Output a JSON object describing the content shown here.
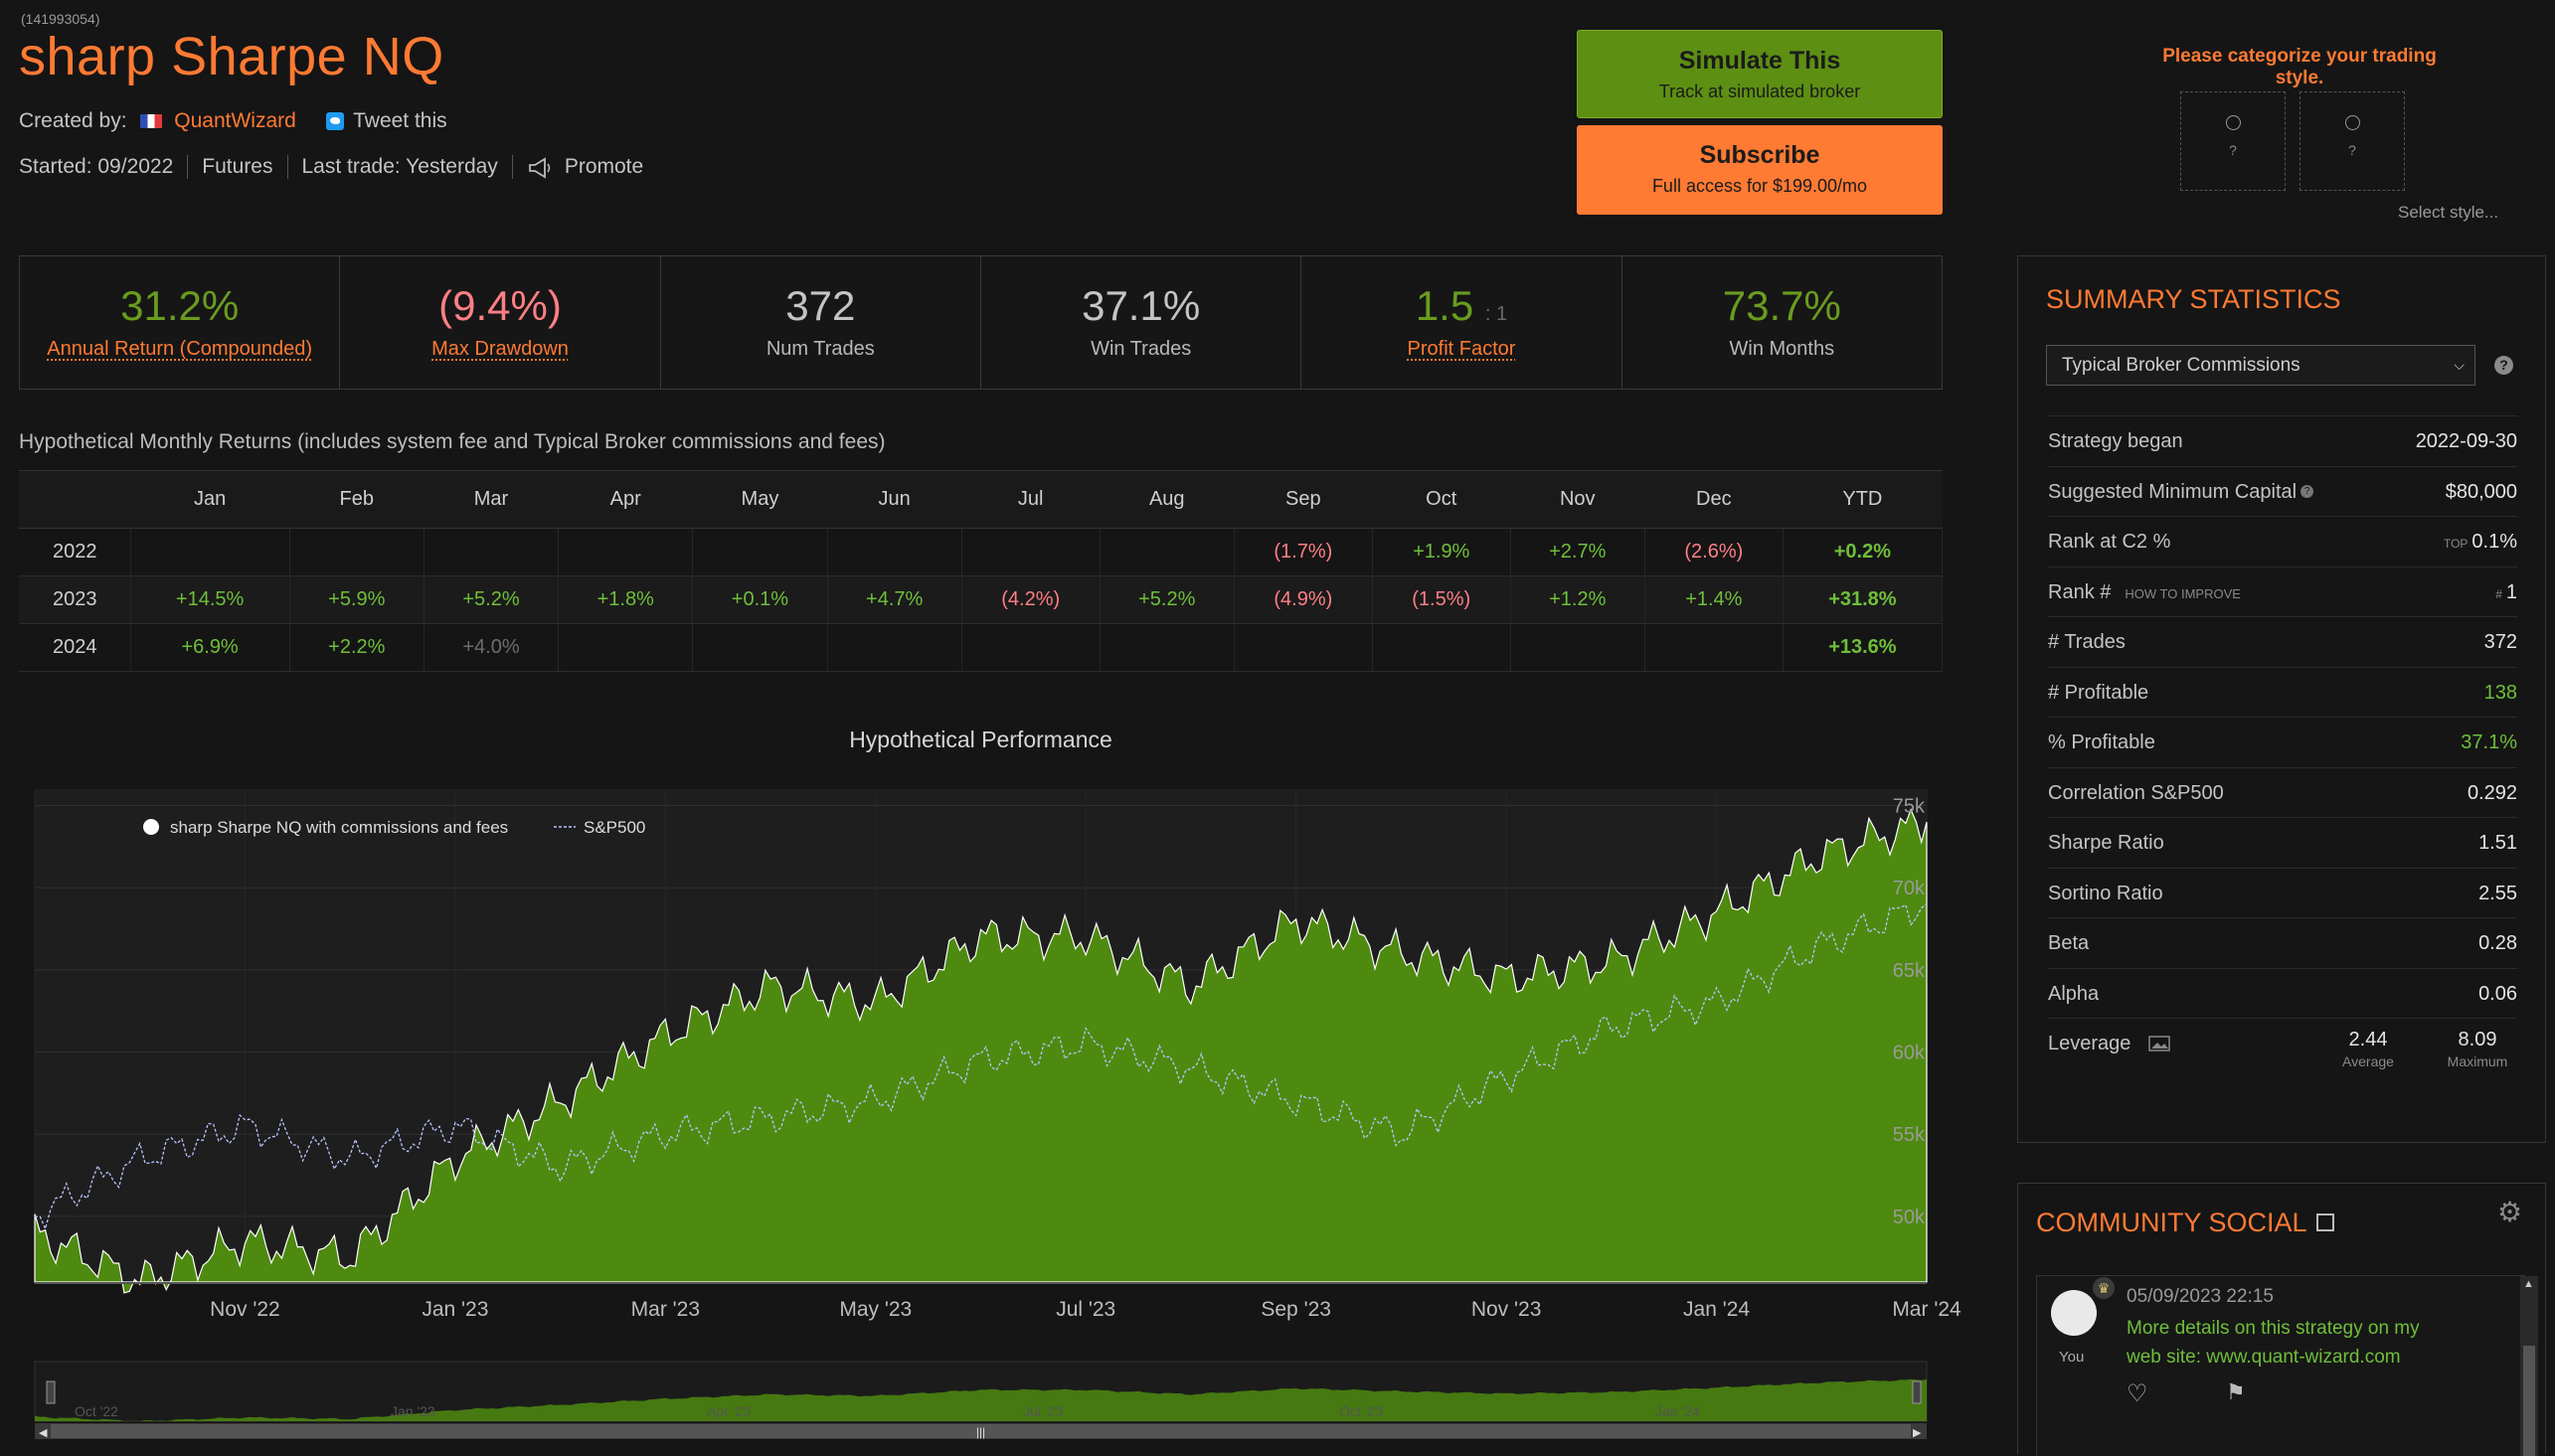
{
  "header": {
    "strategy_id": "(141993054)",
    "title": "sharp Sharpe NQ",
    "created_by_label": "Created by:",
    "author": "QuantWizard",
    "tweet": "Tweet this",
    "started": "Started: 09/2022",
    "asset": "Futures",
    "last_trade": "Last trade: Yesterday",
    "promote": "Promote"
  },
  "actions": {
    "simulate_title": "Simulate This",
    "simulate_sub": "Track at simulated broker",
    "subscribe_title": "Subscribe",
    "subscribe_sub": "Full access for $199.00/mo",
    "simulate_color": "#5d8f13",
    "subscribe_color": "#ff7a33"
  },
  "categorize": {
    "title": "Please categorize your trading style.",
    "box1": "?",
    "box2": "?",
    "select_style": "Select style..."
  },
  "stats": [
    {
      "value": "31.2%",
      "label": "Annual Return (Compounded)",
      "color": "#6a9c1f",
      "link": true
    },
    {
      "value": "(9.4%)",
      "label": "Max Drawdown",
      "color": "#ff7f86",
      "link": true
    },
    {
      "value": "372",
      "label": "Num Trades",
      "color": "#c4c4c4",
      "link": false
    },
    {
      "value": "37.1%",
      "label": "Win Trades",
      "color": "#c4c4c4",
      "link": false
    },
    {
      "value": "1.5",
      "suffix": ": 1",
      "label": "Profit Factor",
      "color": "#6a9c1f",
      "link": true
    },
    {
      "value": "73.7%",
      "label": "Win Months",
      "color": "#6a9c1f",
      "link": false
    }
  ],
  "monthly": {
    "title": "Hypothetical Monthly Returns (includes system fee and Typical Broker commissions and fees)",
    "headers": [
      "",
      "Jan",
      "Feb",
      "Mar",
      "Apr",
      "May",
      "Jun",
      "Jul",
      "Aug",
      "Sep",
      "Oct",
      "Nov",
      "Dec",
      "YTD"
    ],
    "rows": [
      {
        "year": "2022",
        "cells": [
          "",
          "",
          "",
          "",
          "",
          "",
          "",
          "",
          "(1.7%)",
          "+1.9%",
          "+2.7%",
          "(2.6%)",
          "+0.2%"
        ]
      },
      {
        "year": "2023",
        "cells": [
          "+14.5%",
          "+5.9%",
          "+5.2%",
          "+1.8%",
          "+0.1%",
          "+4.7%",
          "(4.2%)",
          "+5.2%",
          "(4.9%)",
          "(1.5%)",
          "+1.2%",
          "+1.4%",
          "+31.8%"
        ]
      },
      {
        "year": "2024",
        "cells": [
          "+6.9%",
          "+2.2%",
          "+4.0%",
          "",
          "",
          "",
          "",
          "",
          "",
          "",
          "",
          "",
          "+13.6%"
        ]
      }
    ]
  },
  "chart_data": {
    "type": "area",
    "title": "Hypothetical Performance",
    "series": [
      {
        "name": "sharp Sharpe NQ with commissions and fees",
        "color": "#4e8a0f",
        "x": [
          "Sep '22",
          "Oct '22",
          "Nov '22",
          "Dec '22",
          "Jan '23",
          "Feb '23",
          "Mar '23",
          "Apr '23",
          "May '23",
          "Jun '23",
          "Jul '23",
          "Aug '23",
          "Sep '23",
          "Oct '23",
          "Nov '23",
          "Dec '23",
          "Jan '24",
          "Feb '24",
          "Mar '24"
        ],
        "values": [
          49000,
          46000,
          48500,
          47500,
          53500,
          57000,
          61000,
          64000,
          63000,
          67000,
          67000,
          64000,
          68000,
          66000,
          64500,
          65500,
          68500,
          72000,
          74000
        ]
      },
      {
        "name": "S&P500",
        "color": "#b8c4ff",
        "x": [
          "Sep '22",
          "Oct '22",
          "Nov '22",
          "Dec '22",
          "Jan '23",
          "Feb '23",
          "Mar '23",
          "Apr '23",
          "May '23",
          "Jun '23",
          "Jul '23",
          "Aug '23",
          "Sep '23",
          "Oct '23",
          "Nov '23",
          "Dec '23",
          "Jan '24",
          "Feb '24",
          "Mar '24"
        ],
        "values": [
          50000,
          53500,
          55500,
          53500,
          55500,
          53000,
          55000,
          56000,
          57000,
          59500,
          60500,
          59000,
          57000,
          55000,
          58500,
          61500,
          63000,
          66500,
          69000
        ]
      }
    ],
    "x_ticks": [
      "Nov '22",
      "Jan '23",
      "Mar '23",
      "May '23",
      "Jul '23",
      "Sep '23",
      "Nov '23",
      "Jan '24",
      "Mar '24"
    ],
    "y_ticks": [
      "50k",
      "55k",
      "60k",
      "65k",
      "70k",
      "75k"
    ],
    "ylim": [
      46000,
      76000
    ],
    "navigator_ticks": [
      "Oct '22",
      "Jan '23",
      "Apr '23",
      "Jul '23",
      "Oct '23",
      "Jan '24"
    ],
    "legend_position": "top-left",
    "grid": true
  },
  "summary": {
    "title": "SUMMARY STATISTICS",
    "broker_option": "Typical Broker Commissions",
    "rows": [
      {
        "key": "Strategy began",
        "value": "2022-09-30"
      },
      {
        "key": "Suggested Minimum Capital",
        "value": "$80,000"
      },
      {
        "key": "Rank at C2 %",
        "value": "0.1%",
        "prefix": "TOP"
      },
      {
        "key": "Rank #",
        "value": "1",
        "extra": "HOW TO IMPROVE",
        "prefix": "#"
      },
      {
        "key": "# Trades",
        "value": "372"
      },
      {
        "key": "# Profitable",
        "value": "138",
        "color": "#6fbf3a"
      },
      {
        "key": "% Profitable",
        "value": "37.1%",
        "color": "#6fbf3a"
      },
      {
        "key": "Correlation S&P500",
        "value": "0.292"
      },
      {
        "key": "Sharpe Ratio",
        "value": "1.51"
      },
      {
        "key": "Sortino Ratio",
        "value": "2.55"
      },
      {
        "key": "Beta",
        "value": "0.28"
      },
      {
        "key": "Alpha",
        "value": "0.06"
      }
    ],
    "leverage": {
      "key": "Leverage",
      "average": "2.44",
      "average_label": "Average",
      "maximum": "8.09",
      "maximum_label": "Maximum"
    }
  },
  "community": {
    "title": "COMMUNITY SOCIAL",
    "post": {
      "author_label": "You",
      "date": "05/09/2023 22:15",
      "text": "More details on this strategy on my web site: www.quant-wizard.com"
    }
  }
}
